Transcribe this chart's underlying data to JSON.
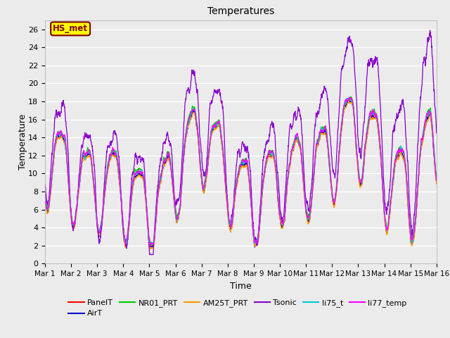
{
  "title": "Temperatures",
  "xlabel": "Time",
  "ylabel": "Temperature",
  "ylim": [
    0,
    27
  ],
  "yticks": [
    0,
    2,
    4,
    6,
    8,
    10,
    12,
    14,
    16,
    18,
    20,
    22,
    24,
    26
  ],
  "bg_color": "#ebebeb",
  "plot_bg_color": "#ebebeb",
  "annotation_text": "HS_met",
  "annotation_bg": "#ffff00",
  "annotation_border": "#800000",
  "series_colors": {
    "PanelT": "#ff0000",
    "AirT": "#0000cc",
    "NR01_PRT": "#00cc00",
    "AM25T_PRT": "#ff9900",
    "Tsonic": "#8800cc",
    "li75_t": "#00cccc",
    "li77_temp": "#ff00ff"
  },
  "xtick_labels": [
    "Mar 1",
    "Mar 2",
    "Mar 3",
    "Mar 4",
    "Mar 5",
    "Mar 6",
    "Mar 7",
    "Mar 8",
    "Mar 9",
    "Mar 10",
    "Mar 11",
    "Mar 12",
    "Mar 13",
    "Mar 14",
    "Mar 15",
    "Mar 16"
  ],
  "n_days": 15,
  "points_per_day": 144,
  "figsize": [
    6.4,
    4.8
  ],
  "dpi": 100
}
